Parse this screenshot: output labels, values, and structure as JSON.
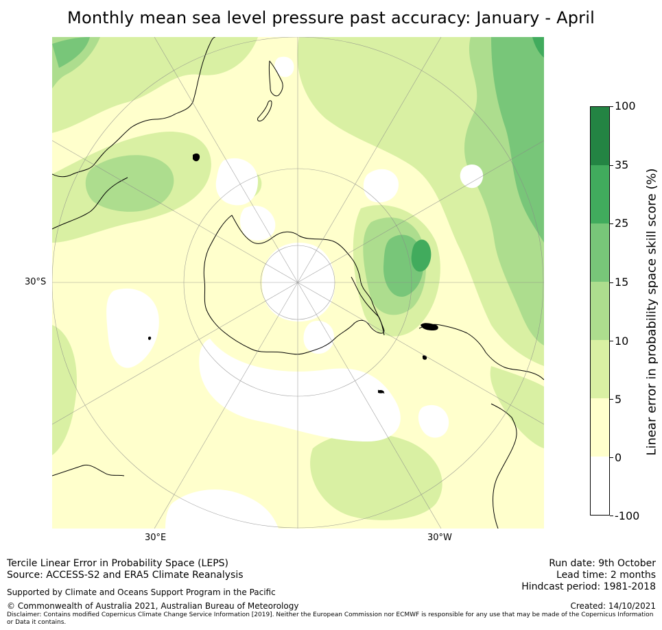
{
  "title": "Monthly mean sea level pressure past accuracy: January - April",
  "map": {
    "projection": "south-polar-stereographic",
    "axis_labels": {
      "lat_30s": "30°S",
      "lon_30e": "30°E",
      "lon_30w": "30°W"
    },
    "colors": {
      "lt0": "#ffffff",
      "c0_5": "#ffffcc",
      "c5_10": "#d9f0a3",
      "c10_15": "#addd8e",
      "c15_25": "#78c679",
      "c25_35": "#41ab5d",
      "c35_100": "#238443",
      "coast": "#000000",
      "grid": "#888888"
    }
  },
  "colorbar": {
    "title": "Linear error in probability space skill score (%)",
    "ticks": [
      "-100",
      "0",
      "5",
      "10",
      "15",
      "25",
      "35",
      "100"
    ],
    "segments": [
      {
        "from": "-100",
        "to": "0",
        "color": "#ffffff"
      },
      {
        "from": "0",
        "to": "5",
        "color": "#ffffcc"
      },
      {
        "from": "5",
        "to": "10",
        "color": "#d9f0a3"
      },
      {
        "from": "10",
        "to": "15",
        "color": "#addd8e"
      },
      {
        "from": "15",
        "to": "25",
        "color": "#78c679"
      },
      {
        "from": "25",
        "to": "35",
        "color": "#41ab5d"
      },
      {
        "from": "35",
        "to": "100",
        "color": "#238443"
      }
    ]
  },
  "footer": {
    "method": "Tercile Linear Error in Probability Space (LEPS)",
    "source": "Source: ACCESS-S2 and ERA5 Climate Reanalysis",
    "support": "Supported by Climate and Oceans Support Program in the Pacific",
    "copyright": "© Commonwealth of Australia 2021, Australian Bureau of Meteorology",
    "disclaimer": "Disclaimer: Contains modified Copernicus Climate Change Service Information [2019]. Neither the European Commission nor ECMWF is responsible for any use that may be made of the Copernicus Information or Data it contains.",
    "run_date": "Run date: 9th October",
    "lead_time": "Lead time: 2 months",
    "hindcast": "Hindcast period: 1981-2018",
    "created": "Created: 14/10/2021"
  }
}
